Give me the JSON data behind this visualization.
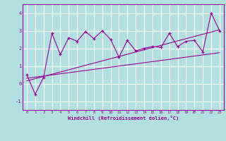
{
  "xlabel": "Windchill (Refroidissement éolien,°C)",
  "bg_color": "#b2e0e0",
  "grid_color": "#ffffff",
  "line_color": "#990099",
  "xlim": [
    -0.5,
    23.5
  ],
  "ylim": [
    -1.5,
    4.5
  ],
  "yticks": [
    -1,
    0,
    1,
    2,
    3,
    4
  ],
  "xticks": [
    0,
    1,
    2,
    3,
    4,
    5,
    6,
    7,
    8,
    9,
    10,
    11,
    12,
    13,
    14,
    15,
    16,
    17,
    18,
    19,
    20,
    21,
    22,
    23
  ],
  "data_x": [
    0,
    1,
    2,
    3,
    4,
    5,
    6,
    7,
    8,
    9,
    10,
    11,
    12,
    13,
    14,
    15,
    16,
    17,
    18,
    19,
    20,
    21,
    22,
    23
  ],
  "data_y": [
    0.5,
    -0.6,
    0.35,
    2.85,
    1.65,
    2.6,
    2.4,
    2.95,
    2.55,
    3.0,
    2.5,
    1.5,
    2.45,
    1.85,
    2.0,
    2.1,
    2.05,
    2.85,
    2.1,
    2.4,
    2.45,
    1.8,
    4.0,
    3.0
  ],
  "line1_x": [
    0,
    23
  ],
  "line1_y": [
    0.3,
    1.75
  ],
  "line2_x": [
    0,
    23
  ],
  "line2_y": [
    0.15,
    3.05
  ]
}
